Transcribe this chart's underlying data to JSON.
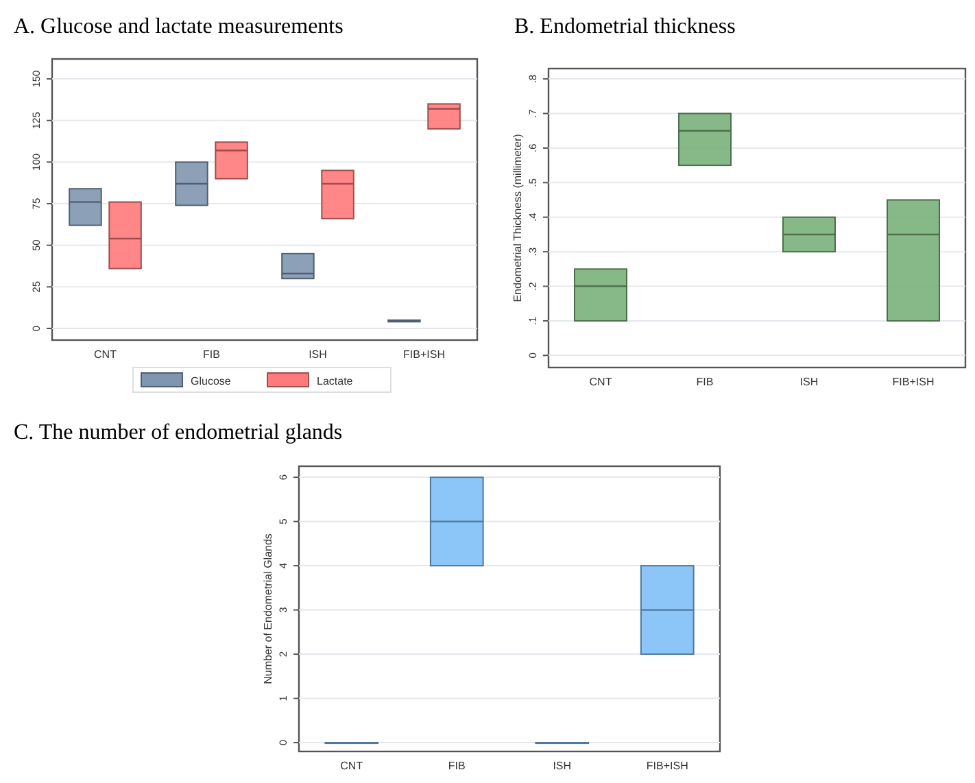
{
  "chart_data": [
    {
      "type": "box",
      "title": "A. Glucose and lactate measurements",
      "categories": [
        "CNT",
        "FIB",
        "ISH",
        "FIB+ISH"
      ],
      "ylim": [
        -7,
        162
      ],
      "yticks": [
        0,
        25,
        50,
        75,
        100,
        125,
        150
      ],
      "grid": "y",
      "legend": "bottom",
      "series": [
        {
          "name": "Glucose",
          "color": "#8096b0",
          "boxes": [
            {
              "low": 62,
              "q1": 62,
              "median": 76,
              "q3": 84,
              "high": 84
            },
            {
              "low": 74,
              "q1": 74,
              "median": 87,
              "q3": 100,
              "high": 100
            },
            {
              "low": 30,
              "q1": 30,
              "median": 33,
              "q3": 45,
              "high": 45
            },
            {
              "low": 4,
              "q1": 4,
              "median": 4.5,
              "q3": 5,
              "high": 5
            }
          ]
        },
        {
          "name": "Lactate",
          "color": "#ff7a7a",
          "boxes": [
            {
              "low": 36,
              "q1": 36,
              "median": 54,
              "q3": 76,
              "high": 76
            },
            {
              "low": 90,
              "q1": 90,
              "median": 107,
              "q3": 112,
              "high": 112
            },
            {
              "low": 66,
              "q1": 66,
              "median": 87,
              "q3": 95,
              "high": 95
            },
            {
              "low": 120,
              "q1": 120,
              "median": 132,
              "q3": 135,
              "high": 135
            }
          ]
        }
      ]
    },
    {
      "type": "box",
      "title": "B. Endometrial thickness",
      "ylabel": "Endometrial Thickness (millimeter)",
      "categories": [
        "CNT",
        "FIB",
        "ISH",
        "FIB+ISH"
      ],
      "ylim": [
        -0.035,
        0.83
      ],
      "yticks": [
        0,
        {
          "value": 0.1,
          "label": ".1"
        },
        {
          "value": 0.2,
          "label": ".2"
        },
        {
          "value": 0.3,
          "label": ".3"
        },
        {
          "value": 0.4,
          "label": ".4"
        },
        {
          "value": 0.5,
          "label": ".5"
        },
        {
          "value": 0.6,
          "label": ".6"
        },
        {
          "value": 0.7,
          "label": ".7"
        },
        {
          "value": 0.8,
          "label": ".8"
        }
      ],
      "grid": "y",
      "color": "#7ab07a",
      "boxes": [
        {
          "low": 0.1,
          "q1": 0.1,
          "median": 0.2,
          "q3": 0.25,
          "high": 0.25
        },
        {
          "low": 0.55,
          "q1": 0.55,
          "median": 0.65,
          "q3": 0.7,
          "high": 0.7
        },
        {
          "low": 0.3,
          "q1": 0.3,
          "median": 0.35,
          "q3": 0.4,
          "high": 0.4
        },
        {
          "low": 0.1,
          "q1": 0.1,
          "median": 0.35,
          "q3": 0.45,
          "high": 0.45
        }
      ]
    },
    {
      "type": "box",
      "title": "C. The number of endometrial glands",
      "ylabel": "Number of Endometrial Glands",
      "categories": [
        "CNT",
        "FIB",
        "ISH",
        "FIB+ISH"
      ],
      "ylim": [
        -0.2,
        6.25
      ],
      "yticks": [
        0,
        1,
        2,
        3,
        4,
        5,
        6
      ],
      "grid": "y",
      "color": "#80bff7",
      "boxes": [
        {
          "low": 0,
          "q1": 0,
          "median": 0,
          "q3": 0,
          "high": 0
        },
        {
          "low": 4,
          "q1": 4,
          "median": 5,
          "q3": 6,
          "high": 6
        },
        {
          "low": 0,
          "q1": 0,
          "median": 0,
          "q3": 0,
          "high": 0
        },
        {
          "low": 2,
          "q1": 2,
          "median": 3,
          "q3": 4,
          "high": 4
        }
      ]
    }
  ]
}
